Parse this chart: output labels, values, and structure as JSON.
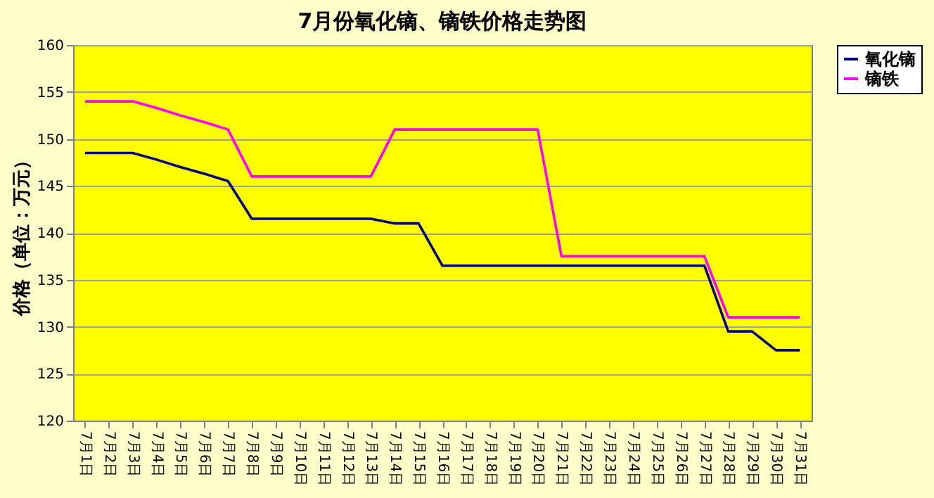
{
  "chart_data": {
    "type": "line",
    "title": "7月份氧化镝、镝铁价格走势图",
    "ylabel": "价格（单位：万元）",
    "categories": [
      "7月1日",
      "7月2日",
      "7月3日",
      "7月4日",
      "7月5日",
      "7月6日",
      "7月7日",
      "7月8日",
      "7月9日",
      "7月10日",
      "7月11日",
      "7月12日",
      "7月13日",
      "7月14日",
      "7月15日",
      "7月16日",
      "7月17日",
      "7月18日",
      "7月19日",
      "7月20日",
      "7月21日",
      "7月22日",
      "7月23日",
      "7月24日",
      "7月25日",
      "7月26日",
      "7月27日",
      "7月28日",
      "7月29日",
      "7月30日",
      "7月31日"
    ],
    "series": [
      {
        "name": "氧化镝",
        "color": "#000080",
        "values": [
          148.5,
          148.5,
          148.5,
          147.8,
          147,
          146.3,
          145.5,
          141.5,
          141.5,
          141.5,
          141.5,
          141.5,
          141.5,
          141,
          141,
          136.5,
          136.5,
          136.5,
          136.5,
          136.5,
          136.5,
          136.5,
          136.5,
          136.5,
          136.5,
          136.5,
          136.5,
          129.5,
          129.5,
          127.5,
          127.5
        ]
      },
      {
        "name": "镝铁",
        "color": "#ff00ff",
        "values": [
          154,
          154,
          154,
          153.3,
          152.5,
          151.8,
          151,
          146,
          146,
          146,
          146,
          146,
          146,
          151,
          151,
          151,
          151,
          151,
          151,
          151,
          137.5,
          137.5,
          137.5,
          137.5,
          137.5,
          137.5,
          137.5,
          131,
          131,
          131,
          131
        ]
      }
    ],
    "ylim": [
      120,
      160
    ],
    "yticks": [
      120,
      125,
      130,
      135,
      140,
      145,
      150,
      155,
      160
    ],
    "grid": "y",
    "legend": "right",
    "marker": "none",
    "line_style": "solid"
  }
}
